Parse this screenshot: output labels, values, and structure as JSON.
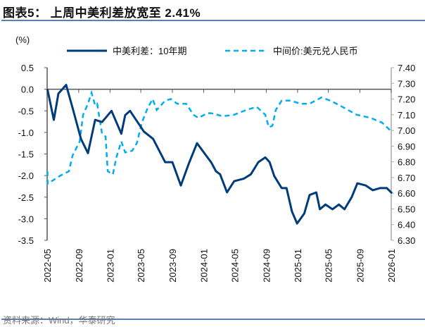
{
  "header": {
    "title": "图表5：  上周中美利差放宽至 2.41%"
  },
  "footer": {
    "source": "资料来源：Wind，华泰研究"
  },
  "colors": {
    "spread": "#003b7a",
    "fx": "#00aeef",
    "rule": "#5b7fad",
    "axis": "#555555",
    "right_axis": "#aaaaaa"
  },
  "chart_data": {
    "type": "line",
    "title": "",
    "left_axis": {
      "unit_label": "(%)",
      "ylim": [
        -3.5,
        0.5
      ],
      "ticks": [
        "0.5",
        "0.0",
        "-0.5",
        "-1.0",
        "-1.5",
        "-2.0",
        "-2.5",
        "-3.0",
        "-3.5"
      ]
    },
    "right_axis": {
      "ylim": [
        6.3,
        7.4
      ],
      "ticks": [
        "7.40",
        "7.30",
        "7.20",
        "7.10",
        "7.00",
        "6.90",
        "6.80",
        "6.70",
        "6.60",
        "6.50",
        "6.40",
        "6.30"
      ]
    },
    "x_axis": {
      "type": "date",
      "xlim": [
        "2022-05-01",
        "2026-01-10"
      ],
      "ticks": [
        "2022-05",
        "2022-09",
        "2023-01",
        "2023-05",
        "2023-09",
        "2024-01",
        "2024-05",
        "2024-09",
        "2025-01",
        "2025-05",
        "2025-09",
        "2026-01"
      ]
    },
    "legend": {
      "placement": "top"
    },
    "grid": false,
    "series": [
      {
        "name": "中美利差：10年期",
        "axis": "left",
        "style": "solid",
        "x": [
          "2022-05-02",
          "2022-05-27",
          "2022-06-14",
          "2022-07-14",
          "2022-08-08",
          "2022-09-10",
          "2022-10-07",
          "2022-11-04",
          "2022-12-01",
          "2023-01-07",
          "2023-02-14",
          "2023-03-01",
          "2023-03-20",
          "2023-04-25",
          "2023-05-13",
          "2023-06-18",
          "2023-08-04",
          "2023-09-01",
          "2023-10-04",
          "2023-11-03",
          "2023-12-06",
          "2024-01-16",
          "2024-01-30",
          "2024-02-18",
          "2024-03-05",
          "2024-04-01",
          "2024-04-29",
          "2024-06-06",
          "2024-07-03",
          "2024-08-01",
          "2024-08-28",
          "2024-09-14",
          "2024-10-02",
          "2024-10-31",
          "2024-11-19",
          "2024-12-10",
          "2024-12-30",
          "2025-01-27",
          "2025-02-17",
          "2025-03-15",
          "2025-03-29",
          "2025-04-20",
          "2025-05-17",
          "2025-06-11",
          "2025-07-03",
          "2025-07-31",
          "2025-08-22",
          "2025-09-24",
          "2025-10-21",
          "2025-11-18",
          "2025-12-15",
          "2026-01-04"
        ],
        "y": [
          0.0,
          -0.71,
          -0.1,
          0.1,
          -0.43,
          -1.15,
          -1.48,
          -0.71,
          -0.76,
          -0.5,
          -1.03,
          -0.6,
          -0.5,
          -0.82,
          -0.98,
          -1.15,
          -1.69,
          -1.69,
          -2.23,
          -1.74,
          -1.25,
          -1.58,
          -1.69,
          -1.9,
          -1.97,
          -2.39,
          -2.13,
          -2.07,
          -1.97,
          -1.69,
          -1.58,
          -1.69,
          -2.01,
          -2.29,
          -2.29,
          -2.83,
          -3.11,
          -2.88,
          -2.45,
          -2.39,
          -2.78,
          -2.67,
          -2.78,
          -2.67,
          -2.78,
          -2.5,
          -2.18,
          -2.23,
          -2.34,
          -2.29,
          -2.29,
          -2.41
        ]
      },
      {
        "name": "中间价:美元兑人民币",
        "axis": "right",
        "style": "dashed",
        "x": [
          "2022-05-02",
          "2022-05-03",
          "2022-06-19",
          "2022-07-25",
          "2022-08-08",
          "2022-09-05",
          "2022-09-18",
          "2022-10-07",
          "2022-10-21",
          "2022-11-04",
          "2022-11-12",
          "2022-12-01",
          "2022-12-15",
          "2022-12-23",
          "2023-01-12",
          "2023-01-26",
          "2023-02-14",
          "2023-03-01",
          "2023-03-28",
          "2023-04-16",
          "2023-05-05",
          "2023-05-27",
          "2023-06-16",
          "2023-07-02",
          "2023-08-04",
          "2023-08-26",
          "2023-09-20",
          "2023-10-25",
          "2023-11-22",
          "2023-12-11",
          "2024-01-16",
          "2024-01-30",
          "2024-03-16",
          "2024-04-29",
          "2024-06-15",
          "2024-07-26",
          "2024-08-28",
          "2024-09-11",
          "2024-09-25",
          "2024-10-08",
          "2024-10-31",
          "2024-12-05",
          "2025-01-13",
          "2025-02-17",
          "2025-04-04",
          "2025-05-09",
          "2025-06-25",
          "2025-08-19",
          "2025-10-13",
          "2025-11-26",
          "2025-12-29"
        ],
        "y": [
          6.74,
          6.66,
          6.71,
          6.74,
          6.84,
          6.93,
          7.1,
          7.17,
          7.24,
          7.16,
          7.17,
          6.98,
          6.96,
          6.74,
          6.72,
          6.83,
          6.93,
          6.86,
          6.87,
          6.92,
          7.05,
          7.14,
          7.2,
          7.13,
          7.19,
          7.2,
          7.17,
          7.17,
          7.1,
          7.08,
          7.11,
          7.11,
          7.09,
          7.1,
          7.13,
          7.15,
          7.1,
          7.02,
          7.03,
          7.13,
          7.19,
          7.19,
          7.17,
          7.17,
          7.21,
          7.19,
          7.15,
          7.1,
          7.08,
          7.05,
          7.0
        ]
      }
    ]
  }
}
